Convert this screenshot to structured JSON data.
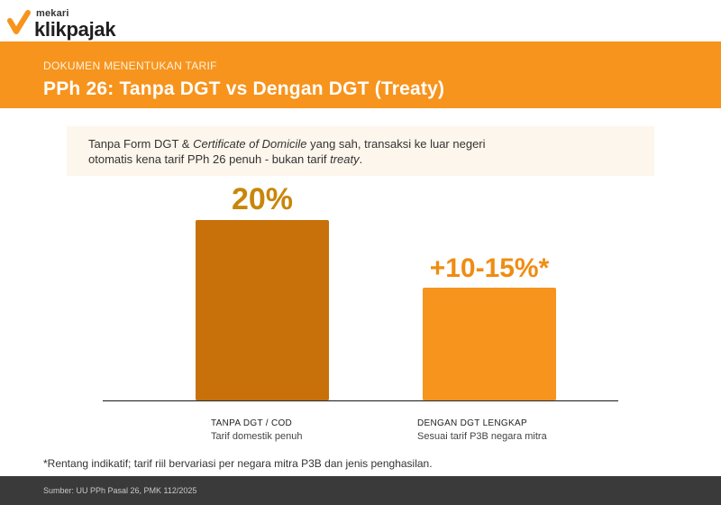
{
  "brand": {
    "small": "mekari",
    "name": "klikpajak",
    "logo_color": "#f7941d"
  },
  "banner": {
    "kicker": "DOKUMEN MENENTUKAN TARIF",
    "title": "PPh 26: Tanpa DGT vs Dengan DGT (Treaty)",
    "color": "#f7941d"
  },
  "callout": {
    "part1": "Tanpa Form DGT & ",
    "part2_italic": "Certificate of Domicile",
    "part3": " yang sah, transaksi ke luar negeri otomatis kena tarif PPh 26 penuh - bukan tarif ",
    "part4_italic": "treaty",
    "part5": "."
  },
  "chart_data": {
    "type": "bar",
    "categories": [
      "TANPA DGT / COD",
      "DENGAN DGT LENGKAP"
    ],
    "category_subtitles": [
      "Tarif domestik penuh",
      "Sesuai tarif P3B negara mitra"
    ],
    "values": [
      20,
      12.5
    ],
    "value_labels": [
      "20%",
      "+10-15%*"
    ],
    "colors": [
      "#c8700a",
      "#f7941d"
    ],
    "label_colors": [
      "#c8860a",
      "#f08c12"
    ],
    "ylim": [
      0,
      25
    ],
    "grid": false,
    "title": "",
    "xlabel": "",
    "ylabel": ""
  },
  "footnote": "*Rentang indikatif; tarif riil bervariasi per negara mitra P3B dan jenis penghasilan.",
  "source": "Sumber: UU PPh Pasal 26, PMK 112/2025"
}
